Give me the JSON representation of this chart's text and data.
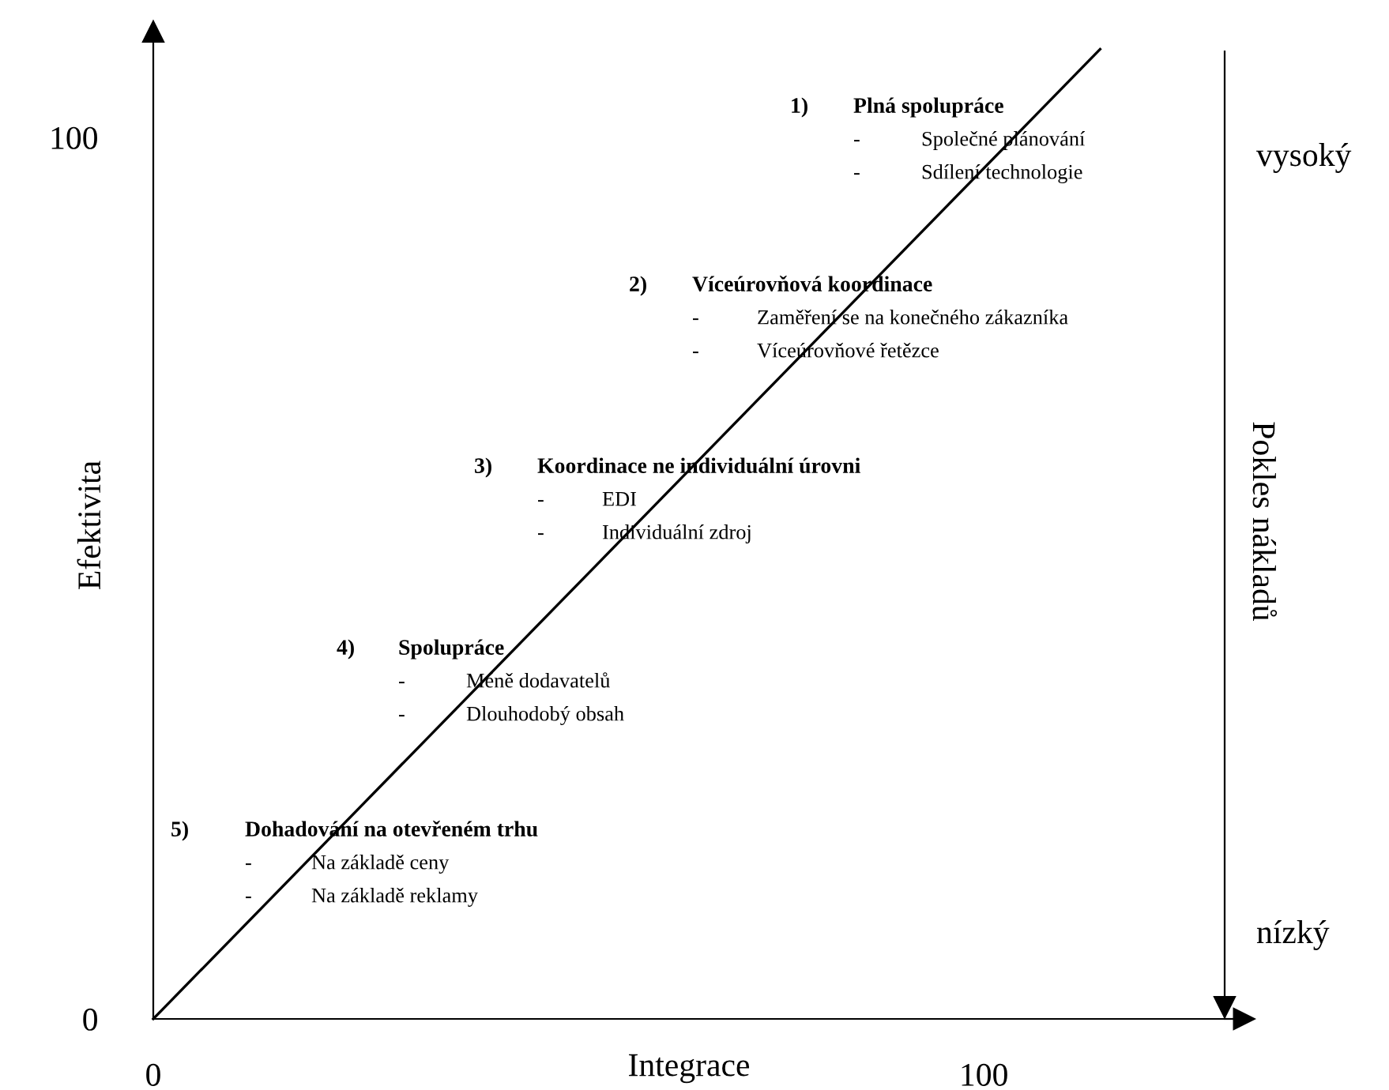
{
  "chart_data": {
    "type": "line",
    "xlabel": "Integrace",
    "ylabel": "Efektivita",
    "y2label": "Pokles nákladů",
    "xlim": [
      0,
      129
    ],
    "xticks": [
      0,
      100
    ],
    "ylim": [
      0,
      112
    ],
    "yticks": [
      0,
      100
    ],
    "series": [
      {
        "color": "#000000",
        "x": [
          0,
          114
        ],
        "values": [
          0,
          110
        ]
      }
    ],
    "grid": false,
    "marker": "none",
    "line_style": "solid",
    "annotations": [
      "1)",
      "Plná spolupráce",
      "-",
      "Společné plánování",
      "-",
      "Sdílení technologie",
      "2)",
      "Víceúrovňová koordinace",
      "-",
      "Zaměření se na konečného zákazníka",
      "-",
      "Víceúrovňové řetězce",
      "3)",
      "Koordinace ne individuální úrovni",
      "-",
      "EDI",
      "-",
      "Individuální zdroj",
      "4)",
      "Spolupráce",
      "-",
      "Méně dodavatelů",
      "-",
      "Dlouhodobý obsah",
      "5)",
      "Dohadování na otevřeném trhu",
      "-",
      "Na základě ceny",
      "-",
      "Na základě reklamy",
      "vysoký",
      "nízký"
    ]
  }
}
